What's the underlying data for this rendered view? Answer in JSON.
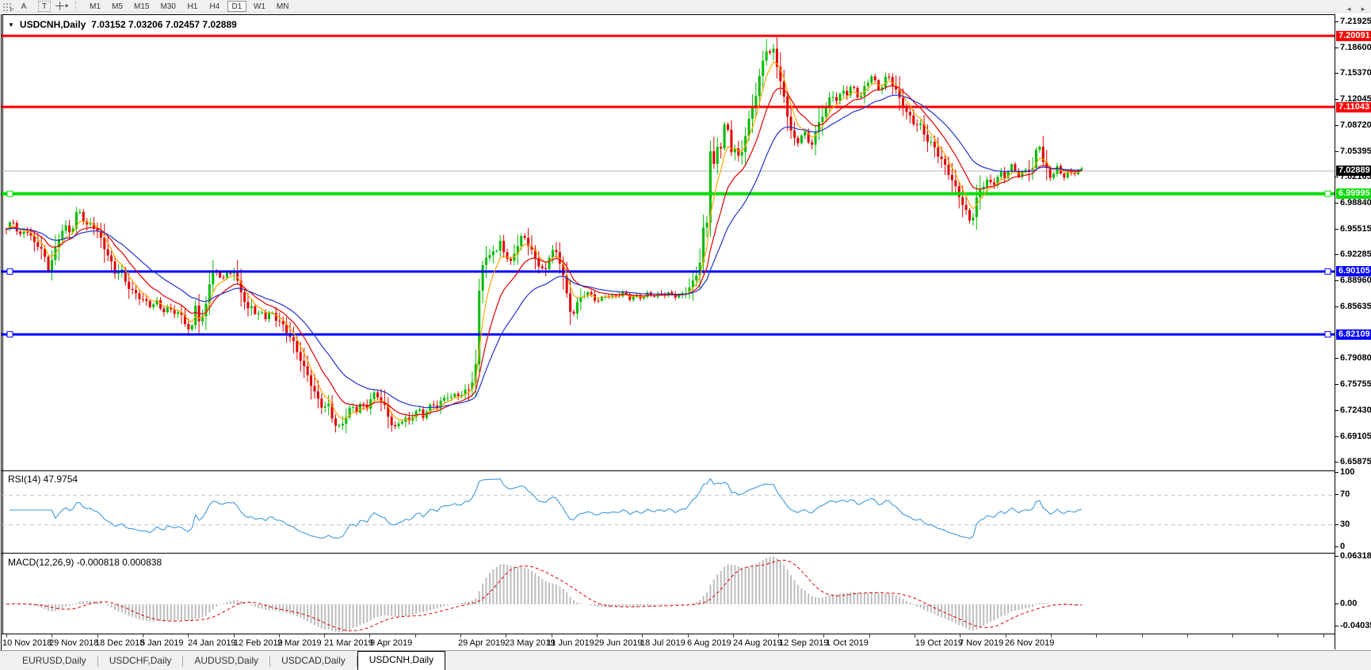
{
  "toolbar": {
    "grip_label": "F",
    "buttons": [
      {
        "name": "annotate-letter-button",
        "label": "A"
      },
      {
        "name": "text-tool-button",
        "label": "T"
      }
    ],
    "cursor_caret": "▾",
    "timeframes": [
      "M1",
      "M5",
      "M15",
      "M30",
      "H1",
      "H4",
      "D1",
      "W1",
      "MN"
    ],
    "active_timeframe": "D1"
  },
  "window": {
    "title_arrow": "▼",
    "symbol": "USDCNH,Daily",
    "ohlc": "7.03152 7.03206 7.02457 7.02889"
  },
  "chart_data": {
    "type": "candlestick",
    "symbol": "USDCNH",
    "timeframe": "Daily",
    "open": "7.03152",
    "high": "7.03206",
    "low": "7.02457",
    "close": "7.02889",
    "candle_colors": {
      "bull": "#00BB00",
      "bear": "#E00000"
    },
    "price_axis": {
      "top_price": 7.2243,
      "bottom_price": 6.65,
      "ticks": [
        "7.21925",
        "7.18600",
        "7.15370",
        "7.12045",
        "7.08720",
        "7.05395",
        "7.02165",
        "6.98840",
        "6.95515",
        "6.92285",
        "6.88960",
        "6.85635",
        "6.79080",
        "6.75755",
        "6.72430",
        "6.69105",
        "6.65875"
      ]
    },
    "horizontal_lines": [
      {
        "price": "7.20091",
        "color": "#FF0000",
        "thickness": 3,
        "endpoint_markers": false
      },
      {
        "price": "7.11043",
        "color": "#FF0000",
        "thickness": 3,
        "endpoint_markers": false
      },
      {
        "price": "6.99995",
        "color": "#00DD00",
        "thickness": 4,
        "endpoint_markers": true
      },
      {
        "price": "6.90105",
        "color": "#0000FF",
        "thickness": 3,
        "endpoint_markers": true
      },
      {
        "price": "6.82109",
        "color": "#0000FF",
        "thickness": 3,
        "endpoint_markers": true
      }
    ],
    "current_price": {
      "value": "7.02889",
      "line_color": "#B4B4B4",
      "label_bg": "#000000"
    },
    "moving_averages": [
      {
        "period": 5,
        "method": "ema",
        "color": "#FFA500"
      },
      {
        "period": 12,
        "method": "ema",
        "color": "#E00000"
      },
      {
        "period": 25,
        "method": "ema",
        "color": "#2233CC"
      }
    ],
    "price_path": [
      [
        8,
        6.952
      ],
      [
        16,
        6.968
      ],
      [
        24,
        6.945
      ],
      [
        32,
        6.958
      ],
      [
        40,
        6.942
      ],
      [
        48,
        6.933
      ],
      [
        56,
        6.92
      ],
      [
        62,
        6.902
      ],
      [
        68,
        6.925
      ],
      [
        76,
        6.952
      ],
      [
        84,
        6.958
      ],
      [
        90,
        6.948
      ],
      [
        96,
        6.972
      ],
      [
        102,
        6.977
      ],
      [
        108,
        6.958
      ],
      [
        116,
        6.964
      ],
      [
        124,
        6.951
      ],
      [
        132,
        6.931
      ],
      [
        140,
        6.911
      ],
      [
        146,
        6.896
      ],
      [
        152,
        6.906
      ],
      [
        158,
        6.89
      ],
      [
        166,
        6.878
      ],
      [
        174,
        6.871
      ],
      [
        182,
        6.862
      ],
      [
        190,
        6.856
      ],
      [
        198,
        6.862
      ],
      [
        206,
        6.852
      ],
      [
        214,
        6.856
      ],
      [
        222,
        6.848
      ],
      [
        230,
        6.843
      ],
      [
        236,
        6.83
      ],
      [
        240,
        6.82
      ],
      [
        244,
        6.838
      ],
      [
        248,
        6.872
      ],
      [
        252,
        6.83
      ],
      [
        258,
        6.852
      ],
      [
        264,
        6.886
      ],
      [
        270,
        6.902
      ],
      [
        276,
        6.896
      ],
      [
        282,
        6.89
      ],
      [
        288,
        6.9
      ],
      [
        294,
        6.903
      ],
      [
        300,
        6.888
      ],
      [
        306,
        6.874
      ],
      [
        312,
        6.85
      ],
      [
        318,
        6.858
      ],
      [
        324,
        6.841
      ],
      [
        330,
        6.849
      ],
      [
        336,
        6.842
      ],
      [
        342,
        6.851
      ],
      [
        348,
        6.843
      ],
      [
        354,
        6.837
      ],
      [
        360,
        6.827
      ],
      [
        366,
        6.817
      ],
      [
        372,
        6.805
      ],
      [
        378,
        6.792
      ],
      [
        384,
        6.778
      ],
      [
        390,
        6.767
      ],
      [
        396,
        6.75
      ],
      [
        402,
        6.737
      ],
      [
        408,
        6.726
      ],
      [
        414,
        6.731
      ],
      [
        420,
        6.712
      ],
      [
        426,
        6.7
      ],
      [
        432,
        6.709
      ],
      [
        438,
        6.722
      ],
      [
        444,
        6.731
      ],
      [
        450,
        6.724
      ],
      [
        456,
        6.732
      ],
      [
        462,
        6.725
      ],
      [
        468,
        6.738
      ],
      [
        474,
        6.748
      ],
      [
        480,
        6.739
      ],
      [
        486,
        6.729
      ],
      [
        492,
        6.712
      ],
      [
        498,
        6.7
      ],
      [
        504,
        6.707
      ],
      [
        510,
        6.714
      ],
      [
        516,
        6.709
      ],
      [
        522,
        6.722
      ],
      [
        528,
        6.727
      ],
      [
        534,
        6.718
      ],
      [
        540,
        6.726
      ],
      [
        546,
        6.731
      ],
      [
        552,
        6.727
      ],
      [
        558,
        6.736
      ],
      [
        564,
        6.744
      ],
      [
        570,
        6.741
      ],
      [
        576,
        6.748
      ],
      [
        582,
        6.744
      ],
      [
        588,
        6.749
      ],
      [
        594,
        6.754
      ],
      [
        600,
        6.772
      ],
      [
        604,
        6.87
      ],
      [
        608,
        6.908
      ],
      [
        612,
        6.921
      ],
      [
        616,
        6.911
      ],
      [
        620,
        6.935
      ],
      [
        626,
        6.925
      ],
      [
        632,
        6.94
      ],
      [
        638,
        6.919
      ],
      [
        644,
        6.909
      ],
      [
        650,
        6.928
      ],
      [
        656,
        6.94
      ],
      [
        660,
        6.95
      ],
      [
        664,
        6.943
      ],
      [
        670,
        6.93
      ],
      [
        676,
        6.916
      ],
      [
        682,
        6.906
      ],
      [
        688,
        6.897
      ],
      [
        692,
        6.918
      ],
      [
        698,
        6.929
      ],
      [
        704,
        6.921
      ],
      [
        710,
        6.904
      ],
      [
        714,
        6.879
      ],
      [
        718,
        6.855
      ],
      [
        722,
        6.845
      ],
      [
        728,
        6.858
      ],
      [
        734,
        6.868
      ],
      [
        740,
        6.874
      ],
      [
        748,
        6.869
      ],
      [
        756,
        6.865
      ],
      [
        764,
        6.872
      ],
      [
        772,
        6.867
      ],
      [
        780,
        6.87
      ],
      [
        788,
        6.873
      ],
      [
        796,
        6.868
      ],
      [
        804,
        6.871
      ],
      [
        812,
        6.869
      ],
      [
        820,
        6.872
      ],
      [
        828,
        6.868
      ],
      [
        836,
        6.873
      ],
      [
        844,
        6.874
      ],
      [
        852,
        6.872
      ],
      [
        860,
        6.87
      ],
      [
        868,
        6.877
      ],
      [
        876,
        6.888
      ],
      [
        880,
        6.901
      ],
      [
        884,
        6.918
      ],
      [
        886,
        6.972
      ],
      [
        890,
        6.93
      ],
      [
        894,
        7.0
      ],
      [
        897,
        7.072
      ],
      [
        900,
        7.03
      ],
      [
        904,
        7.062
      ],
      [
        908,
        7.05
      ],
      [
        912,
        7.072
      ],
      [
        916,
        7.098
      ],
      [
        920,
        7.066
      ],
      [
        924,
        7.05
      ],
      [
        928,
        7.06
      ],
      [
        932,
        7.046
      ],
      [
        936,
        7.055
      ],
      [
        940,
        7.074
      ],
      [
        944,
        7.09
      ],
      [
        948,
        7.104
      ],
      [
        952,
        7.118
      ],
      [
        956,
        7.135
      ],
      [
        960,
        7.155
      ],
      [
        964,
        7.172
      ],
      [
        968,
        7.186
      ],
      [
        971,
        7.176
      ],
      [
        974,
        7.19
      ],
      [
        978,
        7.176
      ],
      [
        982,
        7.158
      ],
      [
        986,
        7.14
      ],
      [
        990,
        7.118
      ],
      [
        994,
        7.098
      ],
      [
        998,
        7.082
      ],
      [
        1002,
        7.068
      ],
      [
        1006,
        7.06
      ],
      [
        1010,
        7.072
      ],
      [
        1014,
        7.082
      ],
      [
        1018,
        7.07
      ],
      [
        1022,
        7.06
      ],
      [
        1026,
        7.07
      ],
      [
        1030,
        7.082
      ],
      [
        1035,
        7.094
      ],
      [
        1040,
        7.106
      ],
      [
        1045,
        7.116
      ],
      [
        1050,
        7.124
      ],
      [
        1055,
        7.118
      ],
      [
        1060,
        7.124
      ],
      [
        1065,
        7.132
      ],
      [
        1070,
        7.128
      ],
      [
        1075,
        7.14
      ],
      [
        1080,
        7.13
      ],
      [
        1085,
        7.121
      ],
      [
        1090,
        7.132
      ],
      [
        1095,
        7.141
      ],
      [
        1100,
        7.149
      ],
      [
        1105,
        7.139
      ],
      [
        1110,
        7.131
      ],
      [
        1115,
        7.143
      ],
      [
        1120,
        7.153
      ],
      [
        1125,
        7.144
      ],
      [
        1130,
        7.133
      ],
      [
        1135,
        7.12
      ],
      [
        1140,
        7.11
      ],
      [
        1145,
        7.1
      ],
      [
        1150,
        7.094
      ],
      [
        1155,
        7.087
      ],
      [
        1160,
        7.092
      ],
      [
        1165,
        7.08
      ],
      [
        1170,
        7.07
      ],
      [
        1175,
        7.064
      ],
      [
        1180,
        7.057
      ],
      [
        1185,
        7.046
      ],
      [
        1190,
        7.038
      ],
      [
        1195,
        7.03
      ],
      [
        1200,
        7.02
      ],
      [
        1205,
        7.01
      ],
      [
        1210,
        7.0
      ],
      [
        1214,
        6.99
      ],
      [
        1218,
        6.98
      ],
      [
        1222,
        6.97
      ],
      [
        1226,
        6.961
      ],
      [
        1230,
        6.982
      ],
      [
        1234,
        6.998
      ],
      [
        1238,
        7.006
      ],
      [
        1242,
        7.012
      ],
      [
        1247,
        7.018
      ],
      [
        1252,
        7.011
      ],
      [
        1257,
        7.02
      ],
      [
        1262,
        7.028
      ],
      [
        1267,
        7.021
      ],
      [
        1272,
        7.028
      ],
      [
        1277,
        7.034
      ],
      [
        1282,
        7.027
      ],
      [
        1287,
        7.021
      ],
      [
        1292,
        7.028
      ],
      [
        1297,
        7.034
      ],
      [
        1302,
        7.03
      ],
      [
        1306,
        7.042
      ],
      [
        1310,
        7.078
      ],
      [
        1314,
        7.046
      ],
      [
        1318,
        7.035
      ],
      [
        1322,
        7.026
      ],
      [
        1326,
        7.019
      ],
      [
        1330,
        7.026
      ],
      [
        1334,
        7.032
      ],
      [
        1338,
        7.027
      ],
      [
        1342,
        7.023
      ],
      [
        1346,
        7.029
      ],
      [
        1350,
        7.025
      ],
      [
        1354,
        7.03
      ],
      [
        1358,
        7.027
      ],
      [
        1362,
        7.03
      ],
      [
        1366,
        7.0289
      ]
    ],
    "x_axis": {
      "labels": [
        [
          3,
          "10 Nov 2018"
        ],
        [
          62,
          "29 Nov 2018"
        ],
        [
          120,
          "18 Dec 2018"
        ],
        [
          177,
          "5 Jan 2019"
        ],
        [
          237,
          "24 Jan 2019"
        ],
        [
          295,
          "12 Feb 2019"
        ],
        [
          350,
          "2 Mar 2019"
        ],
        [
          409,
          "21 Mar 2019"
        ],
        [
          467,
          "9 Apr 2019"
        ],
        [
          578,
          "29 Apr 2019"
        ],
        [
          637,
          "23 May 2019"
        ],
        [
          690,
          "11 Jun 2019"
        ],
        [
          750,
          "29 Jun 2019"
        ],
        [
          808,
          "18 Jul 2019"
        ],
        [
          867,
          "6 Aug 2019"
        ],
        [
          925,
          "24 Aug 2019"
        ],
        [
          983,
          "12 Sep 2019"
        ],
        [
          1042,
          "1 Oct 2019"
        ],
        [
          1155,
          "19 Oct 2019"
        ],
        [
          1210,
          "7 Nov 2019"
        ],
        [
          1268,
          "26 Nov 2019"
        ]
      ]
    },
    "rsi": {
      "label": "RSI(14) 47.9754",
      "period": 14,
      "value": "47.9754",
      "axis_ticks": [
        "100",
        "70",
        "30",
        "0"
      ],
      "dashed_levels": [
        70,
        30
      ],
      "line_color": "#3E9ADE"
    },
    "macd": {
      "label": "MACD(12,26,9) -0.000818 0.000838",
      "params": "12,26,9",
      "main": "-0.000818",
      "signal": "0.000838",
      "axis_ticks": [
        "0.063184",
        "0.00",
        "-0.040355"
      ],
      "histogram_color": "#BDBDBD",
      "signal_color": "#E00000"
    }
  },
  "tab_bar": {
    "tabs": [
      "EURUSD,Daily",
      "USDCHF,Daily",
      "AUDUSD,Daily",
      "USDCAD,Daily",
      "USDCNH,Daily"
    ],
    "active": "USDCNH,Daily",
    "scroll_left": "◄",
    "scroll_right": "►"
  }
}
